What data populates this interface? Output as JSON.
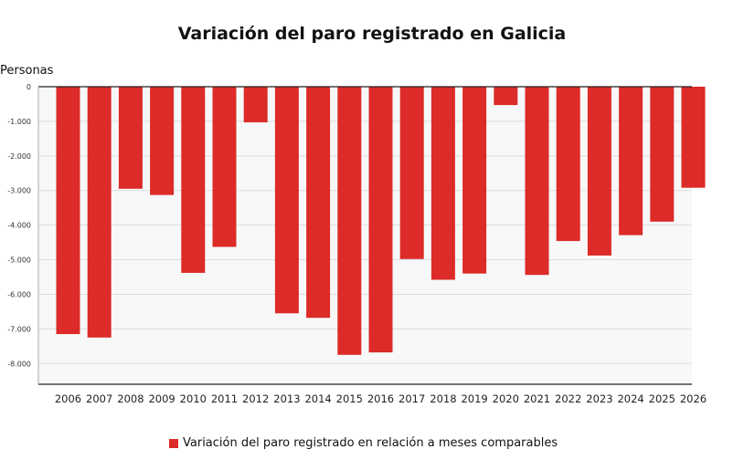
{
  "chart_data": {
    "type": "bar",
    "title": "Variación del paro registrado en Galicia",
    "ylabel": "Personas",
    "xlabel": "",
    "ylim": [
      -8600,
      0
    ],
    "yticks": [
      0,
      -1000,
      -2000,
      -3000,
      -4000,
      -5000,
      -6000,
      -7000,
      -8000
    ],
    "ytick_labels": [
      "0",
      "-1.000",
      "-2.000",
      "-3.000",
      "-4.000",
      "-5.000",
      "-6.000",
      "-7.000",
      "-8.000"
    ],
    "categories": [
      "2006",
      "2007",
      "2008",
      "2009",
      "2010",
      "2011",
      "2012",
      "2013",
      "2014",
      "2015",
      "2016",
      "2017",
      "2018",
      "2019",
      "2020",
      "2021",
      "2022",
      "2023",
      "2024",
      "2025",
      "2026"
    ],
    "series": [
      {
        "name": "Variación del paro registrado en relación a meses comparables",
        "color": "#dc2b28",
        "values": [
          -7150,
          -7250,
          -2950,
          -3130,
          -5380,
          -4630,
          -1030,
          -6550,
          -6680,
          -7750,
          -7680,
          -4980,
          -5580,
          -5400,
          -530,
          -5440,
          -4460,
          -4880,
          -4290,
          -3900,
          -2920
        ]
      }
    ],
    "grid": true,
    "legend_position": "bottom"
  }
}
